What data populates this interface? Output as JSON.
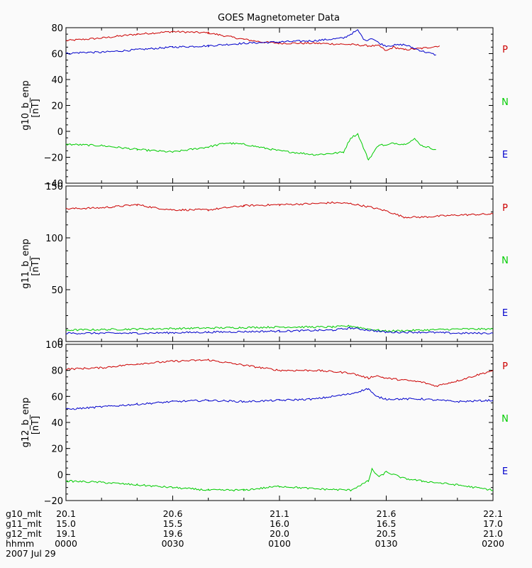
{
  "chart_data": {
    "type": "line",
    "title": "GOES Magnetometer Data",
    "x_ticks": [
      "0000",
      "0030",
      "0100",
      "0130",
      "0200"
    ],
    "x_range_minutes": [
      0,
      120
    ],
    "footer": {
      "rows": [
        {
          "label": "g10_mlt",
          "values": [
            "20.1",
            "20.6",
            "21.1",
            "21.6",
            "22.1"
          ]
        },
        {
          "label": "g11_mlt",
          "values": [
            "15.0",
            "15.5",
            "16.0",
            "16.5",
            "17.0"
          ]
        },
        {
          "label": "g12_mlt",
          "values": [
            "19.1",
            "19.6",
            "20.0",
            "20.5",
            "21.0"
          ]
        },
        {
          "label": "hhmm",
          "values": [
            "0000",
            "0030",
            "0100",
            "0130",
            "0200"
          ]
        }
      ],
      "date": "2007 Jul 29"
    },
    "panels": [
      {
        "ylabel": "g10_b_enp",
        "yunit": "[nT]",
        "ylim": [
          -40,
          80
        ],
        "yticks": [
          -40,
          -20,
          0,
          20,
          40,
          60,
          80
        ],
        "ytick_labels": [
          "−40",
          "−20",
          "0",
          "20",
          "40",
          "60",
          "80"
        ],
        "legend": [
          {
            "label": "P",
            "color": "#cc0000"
          },
          {
            "label": "N",
            "color": "#00cc00"
          },
          {
            "label": "E",
            "color": "#0000cc"
          }
        ],
        "series": [
          {
            "component": "P",
            "color": "#cc0000",
            "x": [
              0,
              10,
              20,
              30,
              40,
              50,
              55,
              60,
              70,
              80,
              85,
              88,
              90,
              92,
              95,
              100,
              105
            ],
            "y": [
              70,
              72,
              75,
              77,
              76,
              71,
              69,
              68,
              68,
              67,
              66,
              66,
              62,
              65,
              63,
              64,
              66
            ]
          },
          {
            "component": "E",
            "color": "#0000cc",
            "x": [
              0,
              5,
              10,
              20,
              30,
              40,
              50,
              60,
              70,
              78,
              80,
              82,
              84,
              86,
              88,
              90,
              95,
              100,
              104
            ],
            "y": [
              60,
              61,
              61,
              63,
              65,
              66,
              68,
              69,
              70,
              72,
              75,
              78,
              70,
              72,
              68,
              66,
              67,
              62,
              59
            ]
          },
          {
            "component": "N",
            "color": "#00cc00",
            "x": [
              0,
              10,
              20,
              30,
              40,
              45,
              50,
              60,
              70,
              75,
              78,
              80,
              82,
              85,
              88,
              90,
              92,
              95,
              98,
              100,
              104
            ],
            "y": [
              -10,
              -11,
              -14,
              -16,
              -12,
              -9,
              -10,
              -15,
              -18,
              -17,
              -16,
              -5,
              -2,
              -22,
              -10,
              -11,
              -9,
              -10,
              -6,
              -11,
              -14
            ]
          }
        ]
      },
      {
        "ylabel": "g11_b_enp",
        "yunit": "[nT]",
        "ylim": [
          0,
          150
        ],
        "yticks": [
          0,
          50,
          100,
          150
        ],
        "ytick_labels": [
          "0",
          "50",
          "100",
          "150"
        ],
        "legend": [
          {
            "label": "P",
            "color": "#cc0000"
          },
          {
            "label": "N",
            "color": "#00cc00"
          },
          {
            "label": "E",
            "color": "#0000cc"
          }
        ],
        "series": [
          {
            "component": "P",
            "color": "#cc0000",
            "x": [
              0,
              10,
              20,
              25,
              30,
              40,
              50,
              60,
              70,
              75,
              80,
              85,
              90,
              95,
              100,
              110,
              120
            ],
            "y": [
              128,
              129,
              132,
              129,
              127,
              127,
              131,
              132,
              133,
              134,
              133,
              130,
              126,
              120,
              120,
              122,
              123
            ]
          },
          {
            "component": "N",
            "color": "#00cc00",
            "x": [
              0,
              20,
              40,
              60,
              75,
              80,
              85,
              90,
              100,
              110,
              120
            ],
            "y": [
              11,
              12,
              13,
              14,
              14,
              15,
              12,
              10,
              11,
              12,
              12
            ]
          },
          {
            "component": "E",
            "color": "#0000cc",
            "x": [
              0,
              20,
              40,
              60,
              75,
              80,
              85,
              90,
              100,
              110,
              120
            ],
            "y": [
              8,
              8,
              9,
              10,
              11,
              13,
              11,
              9,
              9,
              8,
              8
            ]
          }
        ]
      },
      {
        "ylabel": "g12_b_enp",
        "yunit": "[nT]",
        "ylim": [
          -20,
          100
        ],
        "yticks": [
          -20,
          0,
          20,
          40,
          60,
          80,
          100
        ],
        "ytick_labels": [
          "−20",
          "0",
          "20",
          "40",
          "60",
          "80",
          "100"
        ],
        "legend": [
          {
            "label": "P",
            "color": "#cc0000"
          },
          {
            "label": "N",
            "color": "#00cc00"
          },
          {
            "label": "E",
            "color": "#0000cc"
          }
        ],
        "series": [
          {
            "component": "P",
            "color": "#cc0000",
            "x": [
              0,
              10,
              20,
              30,
              40,
              50,
              60,
              70,
              80,
              85,
              87,
              90,
              100,
              104,
              110,
              120
            ],
            "y": [
              81,
              82,
              85,
              87,
              88,
              84,
              80,
              80,
              78,
              74,
              76,
              74,
              71,
              68,
              72,
              80
            ]
          },
          {
            "component": "E",
            "color": "#0000cc",
            "x": [
              0,
              10,
              20,
              30,
              40,
              50,
              60,
              70,
              80,
              85,
              87,
              90,
              100,
              110,
              120
            ],
            "y": [
              50,
              52,
              54,
              56,
              57,
              56,
              57,
              58,
              62,
              66,
              60,
              58,
              58,
              56,
              57
            ]
          },
          {
            "component": "N",
            "color": "#00cc00",
            "x": [
              0,
              10,
              20,
              30,
              40,
              50,
              60,
              70,
              80,
              85,
              86,
              88,
              90,
              95,
              100,
              110,
              120
            ],
            "y": [
              -5,
              -6,
              -8,
              -10,
              -12,
              -12,
              -9,
              -11,
              -12,
              -5,
              4,
              -2,
              2,
              -3,
              -5,
              -8,
              -12
            ]
          }
        ]
      }
    ]
  }
}
